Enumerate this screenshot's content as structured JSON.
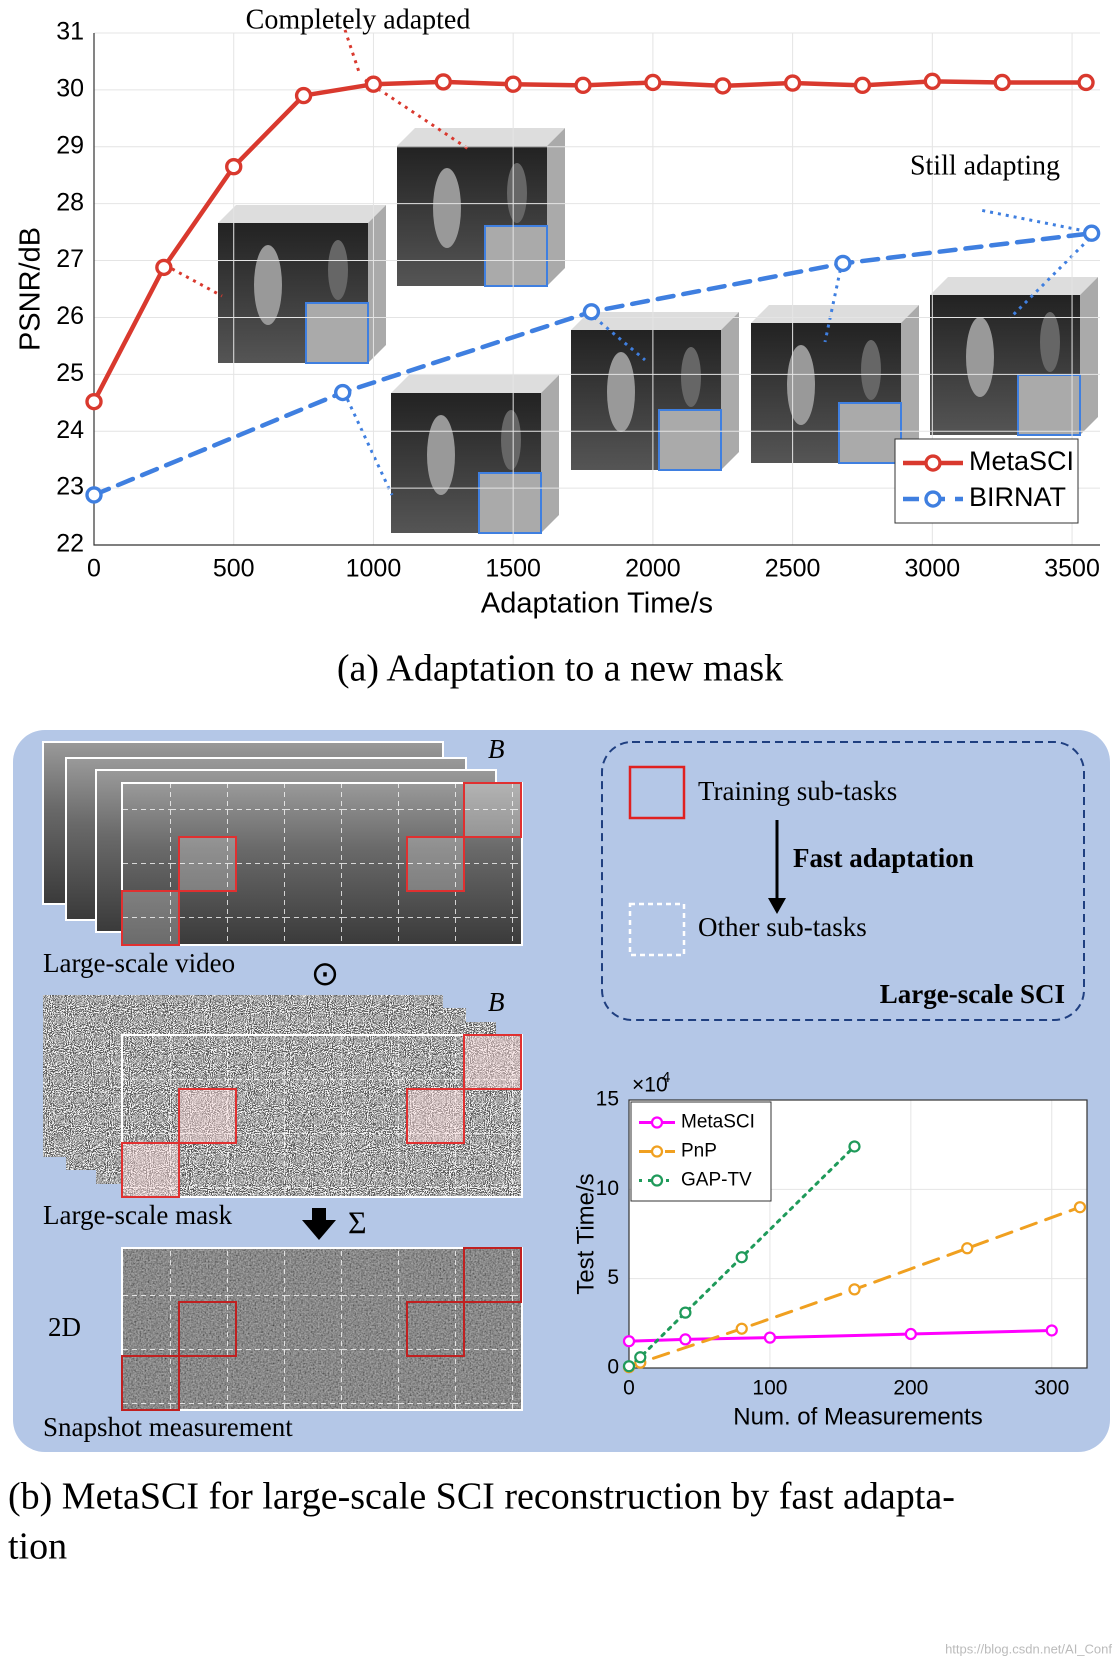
{
  "chart_data": [
    {
      "type": "line",
      "title_caption": "(a) Adaptation to a new mask",
      "xlabel": "Adaptation Time/s",
      "ylabel": "PSNR/dB",
      "xlim": [
        0,
        3600
      ],
      "xticks": [
        0,
        500,
        1000,
        1500,
        2000,
        2500,
        3000,
        3500
      ],
      "ylim": [
        22,
        31
      ],
      "yticks": [
        22,
        23,
        24,
        25,
        26,
        27,
        28,
        29,
        30,
        31
      ],
      "grid": true,
      "legend": "lower right",
      "annotations": [
        "Completely adapted",
        "Still adapting"
      ],
      "series": [
        {
          "name": "MetaSCI",
          "color": "#d9392e",
          "dash": "solid",
          "x": [
            0,
            250,
            500,
            750,
            1000,
            1250,
            1500,
            1750,
            2000,
            2250,
            2500,
            2750,
            3000,
            3250,
            3550
          ],
          "values": [
            24.52,
            26.88,
            28.65,
            29.9,
            30.1,
            30.14,
            30.1,
            30.08,
            30.13,
            30.07,
            30.12,
            30.08,
            30.15,
            30.13,
            30.13
          ]
        },
        {
          "name": "BIRNAT",
          "color": "#3f7fe0",
          "dash": "dashed",
          "x": [
            0,
            890,
            1780,
            2680,
            3570
          ],
          "values": [
            22.88,
            24.68,
            26.1,
            26.95,
            27.48
          ]
        }
      ]
    },
    {
      "type": "line",
      "xlabel": "Num. of Measurements",
      "ylabel": "Test Time/s",
      "offset_text": "×10",
      "offset_exponent": "4",
      "xlim": [
        0,
        325
      ],
      "xticks": [
        0,
        100,
        200,
        300
      ],
      "ylim": [
        0,
        15
      ],
      "yticks": [
        0,
        5,
        10,
        15
      ],
      "grid": true,
      "legend": "upper left",
      "series": [
        {
          "name": "MetaSCI",
          "color": "#ff00ff",
          "dash": "solid",
          "x": [
            0,
            40,
            100,
            200,
            300
          ],
          "values": [
            1.5,
            1.6,
            1.7,
            1.9,
            2.1
          ]
        },
        {
          "name": "PnP",
          "color": "#f0a020",
          "dash": "dashed",
          "x": [
            0,
            8,
            80,
            160,
            240,
            320
          ],
          "values": [
            0.05,
            0.3,
            2.2,
            4.4,
            6.7,
            9.0
          ]
        },
        {
          "name": "GAP-TV",
          "color": "#1f9a5a",
          "dash": "dotted",
          "x": [
            0,
            8,
            40,
            80,
            160
          ],
          "values": [
            0.1,
            0.6,
            3.1,
            6.2,
            12.4
          ]
        }
      ]
    }
  ],
  "diagram": {
    "video_label": "Large-scale video",
    "hadamard": "⊙",
    "b_video": "B",
    "mask_label": "Large-scale mask",
    "b_mask": "B",
    "sum": "Σ",
    "dim": "2D",
    "snapshot_label": "Snapshot measurement",
    "training": "Training sub-tasks",
    "fast": "Fast adaptation",
    "other": "Other sub-tasks",
    "box_title": "Large-scale SCI",
    "caption_lines": [
      "(b) MetaSCI for large-scale SCI reconstruction by fast adapta-",
      "tion"
    ],
    "watermark": "https://blog.csdn.net/AI_Conf"
  }
}
